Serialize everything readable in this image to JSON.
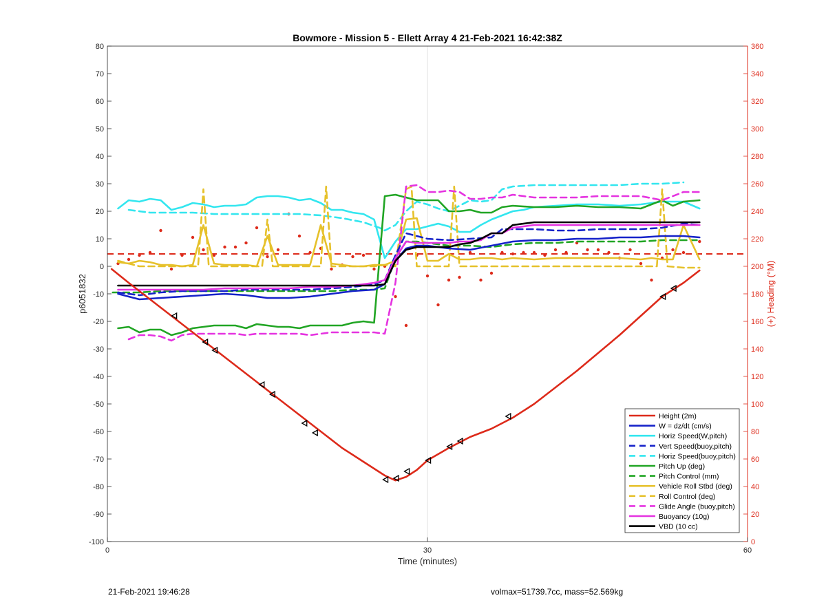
{
  "chart_data": {
    "type": "line",
    "title": "Bowmore - Mission 5 - Ellett Array 4 21-Feb-2021 16:42:38Z",
    "xlabel": "Time (minutes)",
    "ylabel": "p6051832",
    "y2label": "(+) Heading (°M)",
    "xlim": [
      0,
      60
    ],
    "ylim": [
      -100,
      80
    ],
    "y2lim": [
      0,
      360
    ],
    "xticks": [
      0,
      30,
      60
    ],
    "yticks": [
      -100,
      -90,
      -80,
      -70,
      -60,
      -50,
      -40,
      -30,
      -20,
      -10,
      0,
      10,
      20,
      30,
      40,
      50,
      60,
      70,
      80
    ],
    "y2ticks": [
      0,
      20,
      40,
      60,
      80,
      100,
      120,
      140,
      160,
      180,
      200,
      220,
      240,
      260,
      280,
      300,
      320,
      340,
      360
    ],
    "grid": "x-at-30",
    "legend_position": "bottom-right",
    "colors": {
      "red": "#dd2a1a",
      "blue": "#1522c9",
      "cyan": "#33e6ef",
      "green": "#21a524",
      "yellow": "#e6c12b",
      "magenta": "#e533e0",
      "black": "#000000",
      "right_axis": "#dd2a1a"
    },
    "series": [
      {
        "name": "Height (2m)",
        "color": "#dd2a1a",
        "dash": false,
        "x": [
          0.4,
          2,
          4,
          6,
          8,
          10,
          12,
          14,
          16,
          18,
          20,
          22,
          24,
          26,
          27,
          28,
          29,
          30,
          32,
          34,
          36,
          38,
          40,
          42,
          44,
          46,
          48,
          50,
          52,
          54,
          55.5
        ],
        "y": [
          -1,
          -6,
          -12,
          -18,
          -24,
          -30,
          -36,
          -42,
          -48,
          -54,
          -60,
          -66,
          -71,
          -76,
          -77.8,
          -76.5,
          -74,
          -70.5,
          -66,
          -62,
          -59,
          -55,
          -50,
          -44,
          -38,
          -31.5,
          -25,
          -18,
          -11,
          -6,
          -1.5
        ]
      },
      {
        "name": "W = dz/dt (cm/s)",
        "color": "#1522c9",
        "dash": false,
        "x": [
          1,
          3,
          5,
          7,
          9,
          11,
          13,
          15,
          17,
          19,
          21,
          23,
          25,
          26,
          27,
          28,
          29,
          30,
          32,
          34,
          36,
          38,
          40,
          42,
          44,
          46,
          48,
          50,
          52,
          54,
          55.5
        ],
        "y": [
          -10,
          -12,
          -11.5,
          -11,
          -10.5,
          -10,
          -10.5,
          -11.5,
          -11.5,
          -11,
          -10,
          -9,
          -8.5,
          -6.5,
          2,
          6.5,
          7.5,
          7.5,
          6.5,
          6,
          7.5,
          9,
          9.5,
          9.5,
          10,
          10,
          10.5,
          10.5,
          11,
          11,
          10.5
        ]
      },
      {
        "name": "Horiz Speed(W,pitch)",
        "color": "#33e6ef",
        "dash": false,
        "x": [
          1,
          2,
          3,
          4,
          5,
          6,
          7,
          8,
          9,
          10,
          11,
          12,
          13,
          14,
          15,
          16,
          17,
          18,
          19,
          20,
          21,
          22,
          23,
          24,
          25,
          26,
          27,
          28,
          29,
          30,
          31,
          32,
          33,
          34,
          35,
          36,
          37,
          38,
          39,
          40,
          42,
          44,
          46,
          48,
          50,
          52,
          54,
          55.5
        ],
        "y": [
          21,
          24,
          23.5,
          24.5,
          24,
          20.5,
          21.5,
          23,
          22.5,
          21.5,
          22,
          22,
          22.5,
          25,
          25.5,
          25.5,
          25,
          24,
          24.5,
          23,
          20.5,
          20.5,
          19.5,
          19,
          17,
          3,
          9,
          13.5,
          13.5,
          14.5,
          15.5,
          14.5,
          12.5,
          12.5,
          15,
          17,
          18.5,
          20,
          20.5,
          21.5,
          22,
          22.5,
          22.5,
          22,
          22.5,
          23.5,
          23.5,
          21
        ]
      },
      {
        "name": "Vert Speed(buoy,pitch)",
        "color": "#1522c9",
        "dash": true,
        "x": [
          1,
          3,
          5,
          7,
          9,
          11,
          13,
          15,
          17,
          19,
          21,
          23,
          25,
          26,
          27,
          28,
          29,
          30,
          32,
          34,
          36,
          37,
          38,
          40,
          42,
          44,
          46,
          48,
          50,
          52,
          54,
          55.5
        ],
        "y": [
          -9.5,
          -10.5,
          -9.5,
          -9,
          -9,
          -9,
          -8.5,
          -8.5,
          -8.5,
          -8.5,
          -8,
          -7.5,
          -6.5,
          -5,
          4,
          12,
          11,
          10,
          9.5,
          10,
          10.5,
          13.5,
          13.5,
          13.5,
          13,
          13,
          13.5,
          13.5,
          13.5,
          14,
          15.5,
          15
        ]
      },
      {
        "name": "Horiz Speed(buoy,pitch)",
        "color": "#33e6ef",
        "dash": true,
        "x": [
          2,
          4,
          6,
          8,
          10,
          12,
          14,
          16,
          18,
          20,
          22,
          24,
          25.5,
          26,
          27,
          28,
          29,
          30,
          31,
          32,
          33,
          34,
          35,
          36,
          37,
          38,
          40,
          42,
          44,
          46,
          48,
          50,
          52,
          54
        ],
        "y": [
          20.5,
          19.5,
          19.5,
          19.5,
          19,
          19,
          19,
          19,
          19,
          18.5,
          17.5,
          16,
          14,
          13,
          15,
          20,
          23.5,
          22.5,
          21,
          20,
          22,
          24,
          23.5,
          24,
          28,
          29,
          29.5,
          29.5,
          29.5,
          29.5,
          29.5,
          30,
          30,
          30.5
        ]
      },
      {
        "name": "Pitch Up (deg)",
        "color": "#21a524",
        "dash": false,
        "x": [
          1,
          2,
          3,
          4,
          5,
          6,
          7,
          8,
          9,
          10,
          11,
          12,
          13,
          14,
          15,
          16,
          17,
          18,
          19,
          20,
          21,
          22,
          23,
          24,
          25,
          26,
          27,
          28,
          29,
          30,
          31,
          32,
          33,
          34,
          35,
          36,
          37,
          38,
          40,
          42,
          44,
          46,
          48,
          50,
          52,
          53,
          54,
          55.5
        ],
        "y": [
          -22.5,
          -22,
          -24,
          -23,
          -23,
          -25,
          -24,
          -22.5,
          -22,
          -21.5,
          -21.5,
          -21.5,
          -22.5,
          -21,
          -21.5,
          -22,
          -22,
          -22.5,
          -21.5,
          -21.5,
          -21.5,
          -21.5,
          -20.5,
          -20,
          -20.5,
          25.5,
          26,
          25,
          24,
          24,
          24,
          20,
          20,
          20.5,
          19.5,
          19.5,
          21.5,
          22,
          21.5,
          21.5,
          22,
          21.5,
          21.5,
          21,
          24,
          22,
          23.5,
          24
        ]
      },
      {
        "name": "Pitch Control (mm)",
        "color": "#21a524",
        "dash": true,
        "x": [
          0.5,
          3,
          5,
          7,
          9,
          11,
          13,
          15,
          17,
          19,
          21,
          23,
          25,
          26,
          27,
          28,
          29,
          30,
          32,
          34,
          36,
          38,
          40,
          42,
          44,
          46,
          48,
          50,
          52,
          54,
          55.5
        ],
        "y": [
          -9.5,
          -9.5,
          -9,
          -9,
          -9,
          -9,
          -9,
          -9,
          -9,
          -9,
          -9,
          -8.5,
          -8.5,
          -8,
          3,
          9,
          9,
          8.5,
          7.5,
          7.5,
          7,
          8,
          8.5,
          8.5,
          9,
          9,
          9,
          9,
          9.5,
          9.5,
          9.5
        ]
      },
      {
        "name": "Vehicle Roll Stbd (deg)",
        "color": "#e6c12b",
        "dash": false,
        "x": [
          1,
          2,
          3,
          4,
          5,
          6,
          7,
          8,
          9,
          10,
          11,
          12,
          13,
          14,
          15,
          16,
          17,
          18,
          19,
          20,
          21,
          22,
          23,
          24,
          25,
          26,
          27,
          28,
          29,
          30,
          31,
          32,
          33,
          34,
          35,
          36,
          37,
          38,
          40,
          42,
          44,
          46,
          48,
          50,
          51,
          52,
          53,
          54,
          55.5
        ],
        "y": [
          1.5,
          1,
          2,
          1.5,
          0.5,
          0.5,
          0,
          0.5,
          15,
          1,
          0.5,
          0.5,
          0.5,
          0,
          11,
          0.5,
          0.5,
          0.5,
          0.5,
          15,
          1,
          0.5,
          0,
          0,
          0.5,
          0.5,
          2,
          17,
          17.5,
          2,
          2,
          4.5,
          2.5,
          2.5,
          3,
          3,
          2.5,
          3,
          2.5,
          3,
          3,
          3,
          3,
          2.5,
          3,
          2.5,
          2.5,
          15,
          2.5
        ]
      },
      {
        "name": "Roll Control (deg)",
        "color": "#e6c12b",
        "dash": true,
        "x": [
          1,
          3,
          5,
          7,
          8.5,
          9,
          9.5,
          11,
          13,
          14.5,
          15,
          15.5,
          17,
          19,
          20,
          20.5,
          21,
          23,
          25,
          26,
          27,
          28,
          28.5,
          29,
          30,
          31,
          32,
          32.5,
          33,
          34,
          36,
          38,
          40,
          42,
          44,
          46,
          48,
          50,
          51.5,
          52,
          52.5,
          54,
          55.5
        ],
        "y": [
          2,
          0,
          0,
          0,
          0,
          28,
          0,
          0,
          0,
          0,
          17,
          0,
          0,
          0,
          0,
          29,
          0,
          0,
          0,
          0.5,
          0,
          28,
          29,
          0,
          0,
          0,
          0,
          29,
          0,
          0,
          0,
          0,
          0,
          0,
          0,
          0,
          0,
          0,
          0,
          28,
          0,
          -0.5,
          -0.5
        ]
      },
      {
        "name": "Glide Angle (buoy,pitch)",
        "color": "#e533e0",
        "dash": true,
        "x": [
          2,
          3,
          4,
          5,
          6,
          7,
          8,
          9,
          10,
          11,
          12,
          13,
          14,
          15,
          16,
          17,
          18,
          19,
          20,
          21,
          22,
          23,
          24,
          25,
          26,
          27,
          28,
          29,
          30,
          31,
          32,
          33,
          34,
          35,
          36,
          37,
          38,
          40,
          42,
          44,
          46,
          48,
          50,
          52,
          54,
          55.5
        ],
        "y": [
          -26.5,
          -25,
          -25,
          -25.5,
          -27,
          -25,
          -24.5,
          -24.5,
          -24.5,
          -24.5,
          -24.5,
          -25,
          -24.5,
          -24.5,
          -24.5,
          -24.5,
          -24.5,
          -25,
          -24.5,
          -24,
          -24,
          -24,
          -24,
          -24,
          -24.5,
          -6,
          29,
          29.5,
          27,
          27,
          27.5,
          27,
          24.5,
          24.5,
          25,
          25,
          26,
          25,
          25,
          25,
          25.5,
          25.5,
          25.5,
          24,
          27,
          27
        ]
      },
      {
        "name": "Buoyancy (10g)",
        "color": "#e533e0",
        "dash": false,
        "x": [
          1,
          3,
          5,
          7,
          9,
          11,
          13,
          15,
          17,
          19,
          21,
          23,
          25,
          26,
          27,
          28,
          29,
          30,
          32,
          33,
          34,
          35,
          36,
          37,
          38,
          40,
          42,
          44,
          46,
          48,
          50,
          52,
          54,
          55.5
        ],
        "y": [
          -8.5,
          -8.5,
          -8.5,
          -8.5,
          -8.5,
          -8,
          -8,
          -8,
          -8,
          -7.5,
          -7.5,
          -7,
          -6,
          -5,
          3,
          9,
          8.5,
          8.5,
          8.5,
          9,
          9,
          9.5,
          12,
          12,
          14,
          15,
          15,
          15,
          15,
          15,
          15,
          15,
          15,
          15
        ]
      },
      {
        "name": "VBD (10 cc)",
        "color": "#000000",
        "dash": false,
        "x": [
          1,
          3,
          5,
          7,
          9,
          11,
          13,
          15,
          17,
          19,
          21,
          23,
          25,
          26,
          27,
          28,
          29,
          30,
          32,
          33,
          34,
          35,
          36,
          37,
          38,
          40,
          42,
          44,
          46,
          48,
          50,
          52,
          54,
          55.5
        ],
        "y": [
          -7,
          -7,
          -7,
          -7,
          -7,
          -7,
          -7,
          -7,
          -7,
          -7,
          -7,
          -7,
          -7,
          -6.5,
          2,
          6,
          7,
          7,
          7,
          8,
          8.5,
          10,
          12,
          12,
          15,
          16,
          16,
          16,
          16,
          16,
          16,
          16,
          16,
          16
        ]
      }
    ],
    "reference_lines": [
      {
        "color": "#dd2a1a",
        "dash": true,
        "y": 4.5
      }
    ],
    "heading_points": {
      "color": "#dd2a1a",
      "x": [
        1,
        2,
        3,
        4,
        5,
        6,
        7,
        8,
        9,
        10,
        11,
        12,
        13,
        14,
        15,
        16,
        17,
        18,
        19,
        20,
        21,
        22,
        23,
        24,
        25,
        26,
        27,
        28,
        29,
        30,
        31,
        32,
        33,
        34,
        35,
        36,
        37,
        38,
        39,
        40,
        41,
        42,
        43,
        44,
        45,
        46,
        47,
        48,
        49,
        50,
        51,
        52,
        53,
        54,
        55.5
      ],
      "y": [
        202,
        205,
        208,
        210,
        226,
        198,
        208,
        221,
        212,
        208,
        214,
        214,
        217,
        228,
        207,
        212,
        238,
        222,
        210,
        213,
        198,
        201,
        207,
        208,
        198,
        200,
        178,
        157,
        208,
        193,
        172,
        190,
        192,
        210,
        190,
        195,
        210,
        209,
        210,
        210,
        208,
        212,
        210,
        217,
        212,
        212,
        210,
        206,
        212,
        202,
        190,
        206,
        212,
        210,
        218
      ]
    },
    "markers": {
      "color": "#000000",
      "x": [
        6.3,
        9.2,
        10.1,
        14.5,
        15.5,
        18.5,
        19.5,
        26.1,
        27.1,
        28.1,
        30.1,
        32.1,
        33.1,
        37.6,
        52.1,
        53.1
      ],
      "y": [
        -18,
        -27.5,
        -30.5,
        -43,
        -46.5,
        -57,
        -60.5,
        -77.5,
        -77,
        -74.5,
        -70.5,
        -65.5,
        -63.5,
        -54.5,
        -11,
        -8
      ]
    }
  },
  "footer": {
    "left": "21-Feb-2021 19:46:28",
    "right": "volmax=51739.7cc, mass=52.569kg"
  }
}
